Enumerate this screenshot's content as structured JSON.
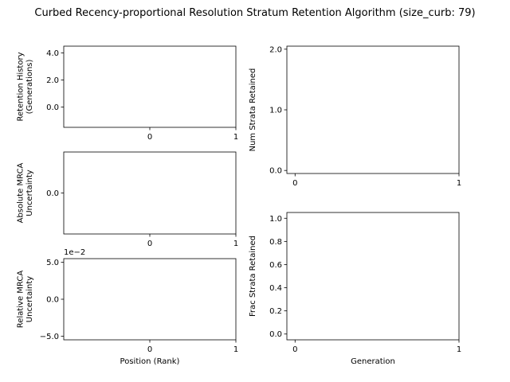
{
  "figure": {
    "suptitle": "Curbed Recency-proportional Resolution Stratum Retention Algorithm (size_curb: 79)"
  },
  "chart_data": [
    {
      "id": "retention-history",
      "type": "scatter",
      "title": "",
      "xlabel": "",
      "ylabel_lines": [
        "Retention History",
        "(Generations)"
      ],
      "x_ticks": [
        {
          "value": 0,
          "label": "0"
        },
        {
          "value": 1,
          "label": "1"
        }
      ],
      "y_ticks": [
        {
          "value": 0,
          "label": "0.0"
        },
        {
          "value": 2,
          "label": "2.0"
        },
        {
          "value": 4,
          "label": "4.0"
        }
      ],
      "xlim": [
        -1.0,
        1.0
      ],
      "ylim": [
        -1.5,
        4.5
      ],
      "offset_text": "",
      "series": [],
      "grid": false,
      "legend": "none"
    },
    {
      "id": "absolute-mrca-uncertainty",
      "type": "line",
      "title": "",
      "xlabel": "",
      "ylabel_lines": [
        "Absolute MRCA",
        "Uncertainty"
      ],
      "x_ticks": [
        {
          "value": 0,
          "label": "0"
        },
        {
          "value": 1,
          "label": "1"
        }
      ],
      "y_ticks": [
        {
          "value": 0,
          "label": "0.0"
        }
      ],
      "xlim": [
        -1.0,
        1.0
      ],
      "ylim": [
        -1.0,
        1.0
      ],
      "offset_text": "",
      "series": [],
      "grid": false,
      "legend": "none"
    },
    {
      "id": "relative-mrca-uncertainty",
      "type": "line",
      "title": "",
      "xlabel": "Position (Rank)",
      "ylabel_lines": [
        "Relative MRCA",
        "Uncertainty"
      ],
      "x_ticks": [
        {
          "value": 0,
          "label": "0"
        },
        {
          "value": 1,
          "label": "1"
        }
      ],
      "y_ticks": [
        {
          "value": -5,
          "label": "−5.0"
        },
        {
          "value": 0,
          "label": "0.0"
        },
        {
          "value": 5,
          "label": "5.0"
        }
      ],
      "xlim": [
        -1.0,
        1.0
      ],
      "ylim": [
        -5.5,
        5.5
      ],
      "offset_text": "1e−2",
      "series": [],
      "grid": false,
      "legend": "none"
    },
    {
      "id": "num-strata-retained",
      "type": "line",
      "title": "",
      "xlabel": "",
      "ylabel_lines": [
        "Num Strata Retained"
      ],
      "x_ticks": [
        {
          "value": 0,
          "label": "0"
        },
        {
          "value": 1,
          "label": "1"
        }
      ],
      "y_ticks": [
        {
          "value": 0,
          "label": "0.0"
        },
        {
          "value": 1,
          "label": "1.0"
        },
        {
          "value": 2,
          "label": "2.0"
        }
      ],
      "xlim": [
        -0.05,
        1.0
      ],
      "ylim": [
        -0.05,
        2.05
      ],
      "offset_text": "",
      "series": [],
      "grid": false,
      "legend": "none"
    },
    {
      "id": "frac-strata-retained",
      "type": "line",
      "title": "",
      "xlabel": "Generation",
      "ylabel_lines": [
        "Frac Strata Retained"
      ],
      "x_ticks": [
        {
          "value": 0,
          "label": "0"
        },
        {
          "value": 1,
          "label": "1"
        }
      ],
      "y_ticks": [
        {
          "value": 0.0,
          "label": "0.0"
        },
        {
          "value": 0.2,
          "label": "0.2"
        },
        {
          "value": 0.4,
          "label": "0.4"
        },
        {
          "value": 0.6,
          "label": "0.6"
        },
        {
          "value": 0.8,
          "label": "0.8"
        },
        {
          "value": 1.0,
          "label": "1.0"
        }
      ],
      "xlim": [
        -0.05,
        1.0
      ],
      "ylim": [
        -0.05,
        1.05
      ],
      "offset_text": "",
      "series": [],
      "grid": false,
      "legend": "none"
    }
  ]
}
